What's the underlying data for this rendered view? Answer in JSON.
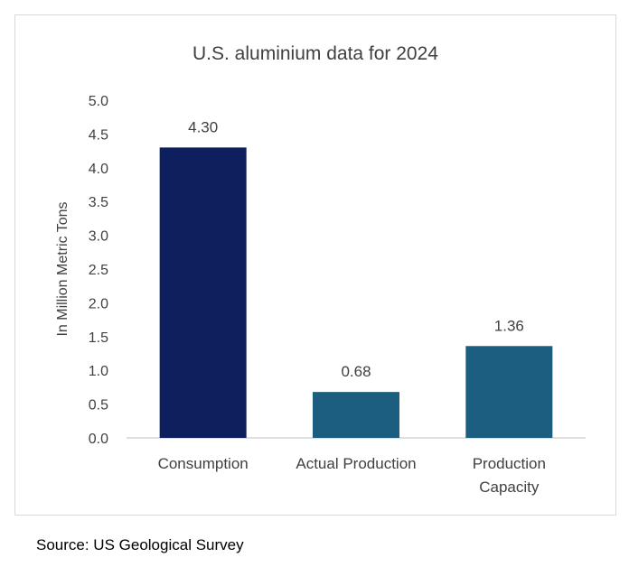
{
  "chart_data": {
    "type": "bar",
    "title": "U.S. aluminium data for 2024",
    "ylabel": "In Million Metric Tons",
    "xlabel": "",
    "categories": [
      [
        "Consumption"
      ],
      [
        "Actual Production"
      ],
      [
        "Production",
        "Capacity"
      ]
    ],
    "values": [
      4.3,
      0.68,
      1.36
    ],
    "value_labels": [
      "4.30",
      "0.68",
      "1.36"
    ],
    "bar_colors": [
      "#0d1f5c",
      "#1b5e80",
      "#1b5e80"
    ],
    "ylim": [
      0,
      5.0
    ],
    "yticks": [
      "0.0",
      "0.5",
      "1.0",
      "1.5",
      "2.0",
      "2.5",
      "3.0",
      "3.5",
      "4.0",
      "4.5",
      "5.0"
    ],
    "grid": false,
    "legend": "none"
  },
  "footer": {
    "source": "Source: US Geological Survey"
  }
}
